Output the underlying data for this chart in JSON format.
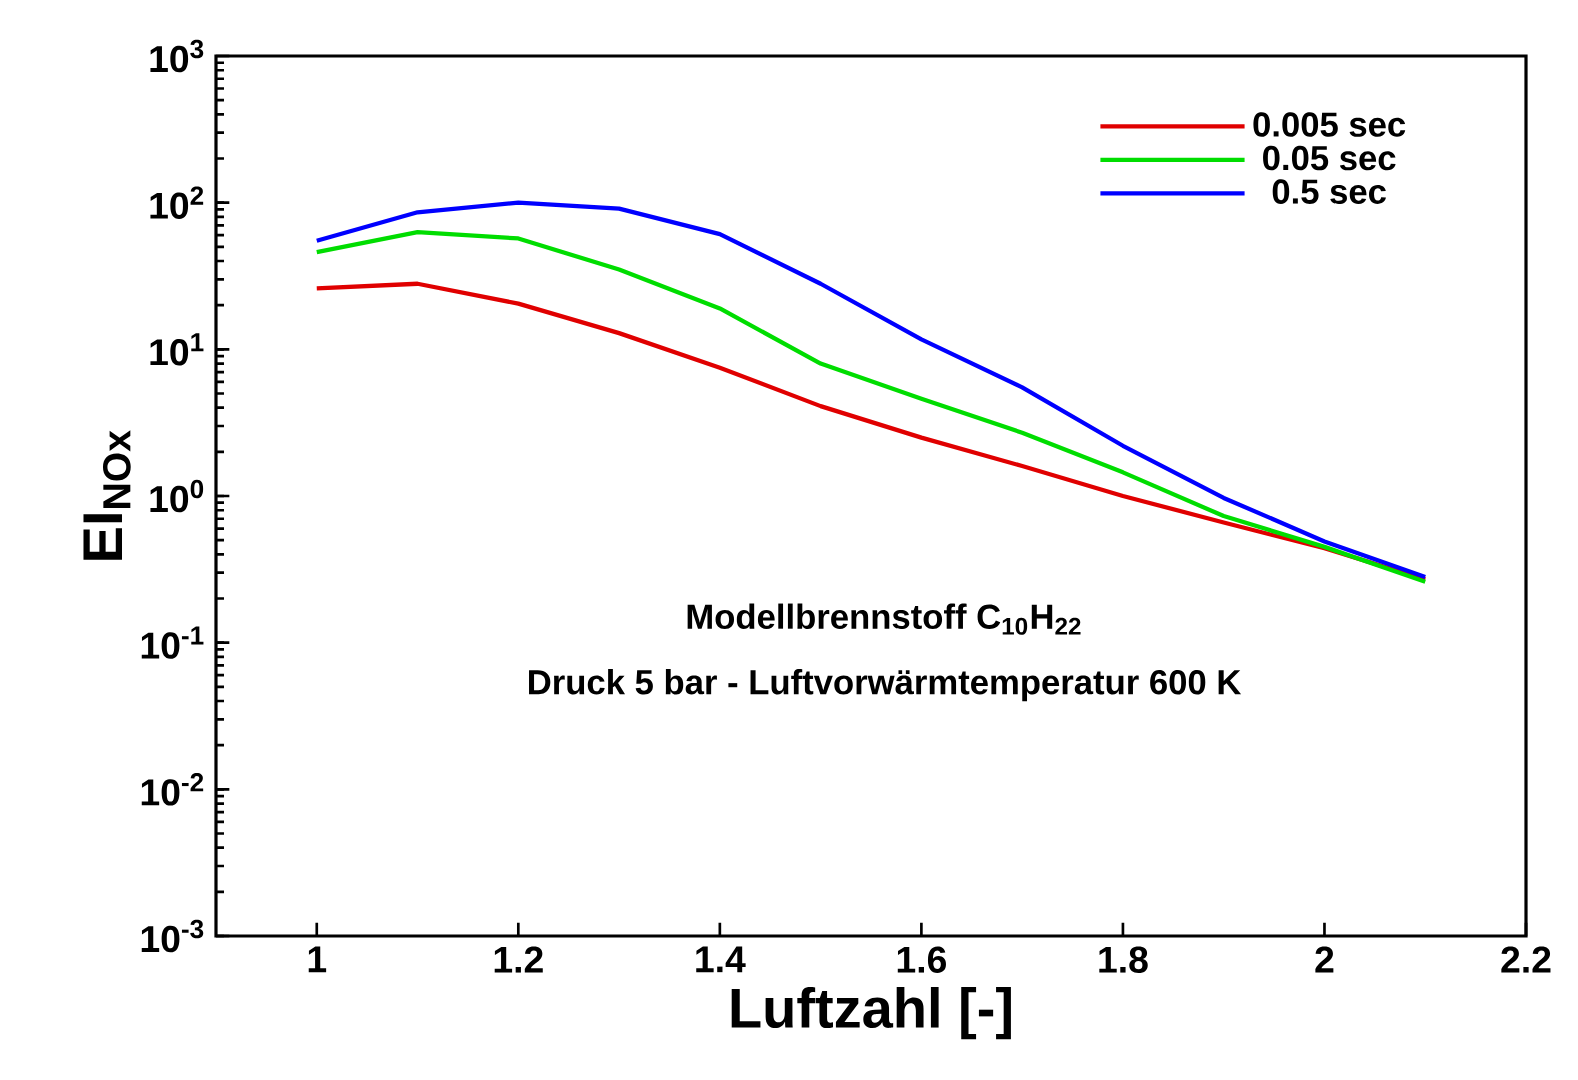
{
  "chart_data": {
    "type": "line",
    "xlabel": "Luftzahl [-]",
    "ylabel": "EI$_{NOx}$",
    "x": [
      1.0,
      1.1,
      1.2,
      1.3,
      1.4,
      1.5,
      1.6,
      1.7,
      1.8,
      1.9,
      2.0,
      2.1
    ],
    "series": [
      {
        "name": "0.005 sec",
        "color": "#e00000",
        "values": [
          26,
          28,
          20.5,
          12.9,
          7.5,
          4.1,
          2.5,
          1.6,
          1.0,
          0.66,
          0.44,
          0.27
        ]
      },
      {
        "name": "0.05 sec",
        "color": "#00dd00",
        "values": [
          46,
          63,
          57,
          35,
          19,
          8,
          4.6,
          2.7,
          1.45,
          0.73,
          0.45,
          0.26
        ]
      },
      {
        "name": "0.5 sec",
        "color": "#0000ff",
        "values": [
          55,
          86,
          100,
          91,
          61,
          28,
          11.7,
          5.5,
          2.2,
          0.97,
          0.49,
          0.28
        ]
      }
    ],
    "xlim": [
      0.9,
      2.2
    ],
    "ylim": [
      0.001,
      1000
    ],
    "log": "y",
    "xticks": [
      1,
      1.2,
      1.4,
      1.6,
      1.8,
      2,
      2.2
    ],
    "yticks": [
      {
        "value": 0.001,
        "label": "10$^{-3}$"
      },
      {
        "value": 0.01,
        "label": "10$^{-2}$"
      },
      {
        "value": 0.1,
        "label": "10$^{-1}$"
      },
      {
        "value": 1,
        "label": "10$^{0}$"
      },
      {
        "value": 10,
        "label": "10$^{1}$"
      },
      {
        "value": 100,
        "label": "10$^{2}$"
      },
      {
        "value": 1000,
        "label": "10$^{3}$"
      }
    ],
    "annotations": [
      "Modellbrennstoff C$_{10}$H$_{22}$",
      "Druck 5 bar - Luftvorwärmtemperatur 600 K"
    ],
    "grid": false,
    "legend": "top right",
    "line_style": "solid",
    "marker": "none"
  }
}
